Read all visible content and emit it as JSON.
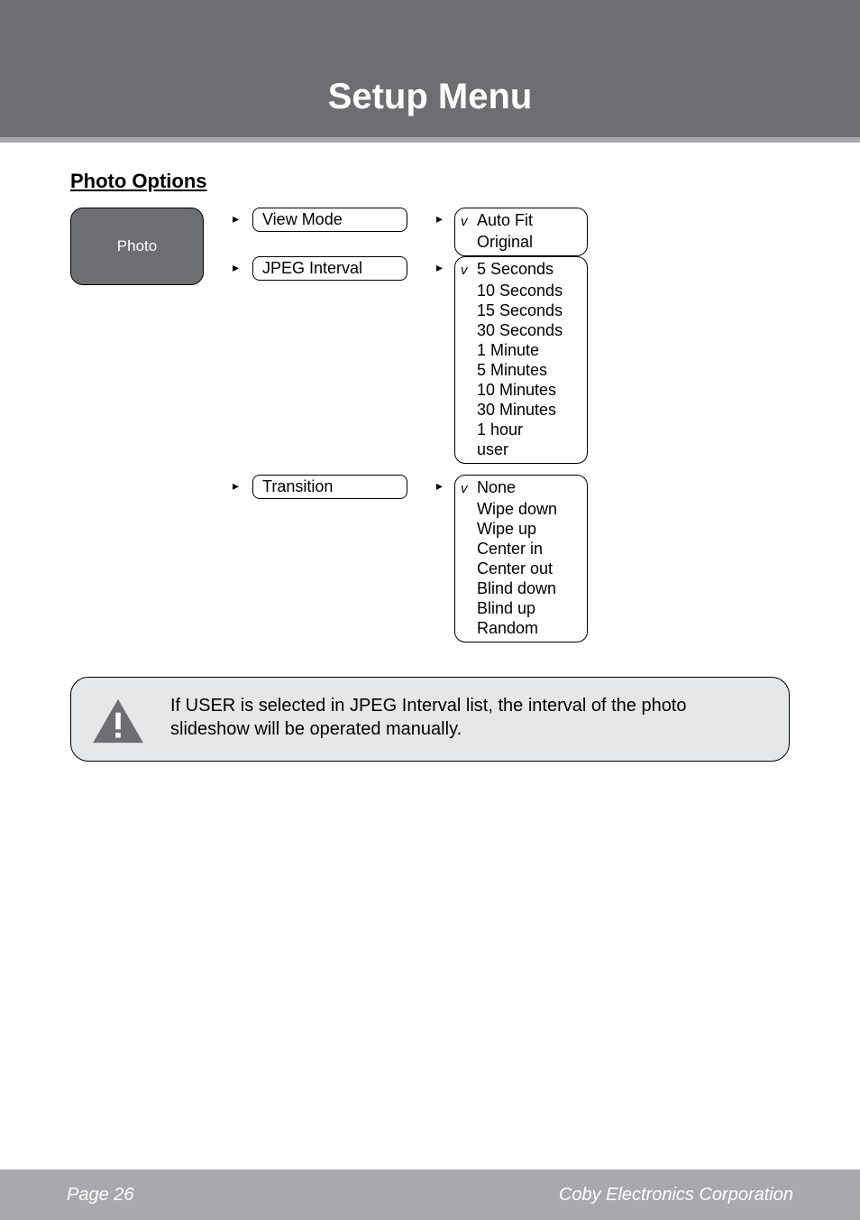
{
  "header": {
    "title": "Setup Menu"
  },
  "section": {
    "title": "Photo Options"
  },
  "photo_box_label": "Photo",
  "options": {
    "view_mode": {
      "label": "View Mode",
      "items": [
        {
          "label": "Auto Fit",
          "checked": true
        },
        {
          "label": "Original",
          "checked": false
        }
      ]
    },
    "jpeg_interval": {
      "label": "JPEG Interval",
      "items": [
        {
          "label": "5 Seconds",
          "checked": true
        },
        {
          "label": "10 Seconds",
          "checked": false
        },
        {
          "label": "15 Seconds",
          "checked": false
        },
        {
          "label": "30 Seconds",
          "checked": false
        },
        {
          "label": "1 Minute",
          "checked": false
        },
        {
          "label": "5 Minutes",
          "checked": false
        },
        {
          "label": "10 Minutes",
          "checked": false
        },
        {
          "label": "30 Minutes",
          "checked": false
        },
        {
          "label": "1 hour",
          "checked": false
        },
        {
          "label": "user",
          "checked": false
        }
      ]
    },
    "transition": {
      "label": "Transition",
      "items": [
        {
          "label": "None",
          "checked": true
        },
        {
          "label": "Wipe down",
          "checked": false
        },
        {
          "label": "Wipe up",
          "checked": false
        },
        {
          "label": "Center in",
          "checked": false
        },
        {
          "label": "Center out",
          "checked": false
        },
        {
          "label": "Blind down",
          "checked": false
        },
        {
          "label": "Blind up",
          "checked": false
        },
        {
          "label": "Random",
          "checked": false
        }
      ]
    }
  },
  "note_text": "If USER is selected in JPEG Interval list, the interval of the photo slideshow will be operated manually.",
  "footer": {
    "page": "Page 26",
    "company": "Coby Electronics Corporation"
  },
  "arrow_glyph": "▸",
  "check_glyph": "v",
  "colors": {
    "header_bg": "#6d6e71",
    "accent_bar": "#a7a9ac",
    "note_bg": "#e6e7e8",
    "footer_bg": "#a7a9ac",
    "text_light": "#ffffff",
    "text_dark": "#000000"
  }
}
